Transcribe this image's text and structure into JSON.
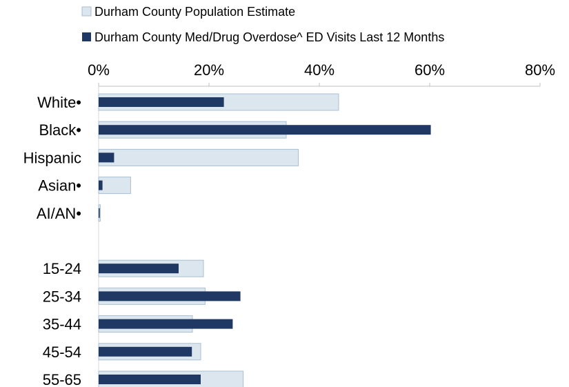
{
  "chart_data": {
    "type": "bar",
    "orientation": "horizontal",
    "axis_position": "top",
    "title": "",
    "xlabel": "",
    "ylabel": "",
    "xlim": [
      0,
      80
    ],
    "x_ticks": [
      "0%",
      "20%",
      "40%",
      "60%",
      "80%"
    ],
    "x_tick_values": [
      0,
      20,
      40,
      60,
      80
    ],
    "grid": false,
    "legend_placement": "top",
    "categories": [
      "White•",
      "Black•",
      "Hispanic",
      "Asian•",
      "AI/AN•",
      "",
      "15-24",
      "25-34",
      "35-44",
      "45-54",
      "55-65"
    ],
    "series": [
      {
        "name": "Durham County Population Estimate",
        "color": "#dce6ee",
        "values": [
          43.5,
          34,
          36.2,
          5.8,
          0.3,
          null,
          19,
          19.3,
          17,
          18.5,
          26.2
        ]
      },
      {
        "name": "Durham County Med/Drug Overdose^ ED Visits Last 12 Months",
        "color": "#1f3864",
        "values": [
          22.7,
          60.2,
          2.8,
          0.7,
          0.2,
          null,
          14.5,
          25.7,
          24.3,
          16.9,
          18.5
        ]
      }
    ]
  }
}
